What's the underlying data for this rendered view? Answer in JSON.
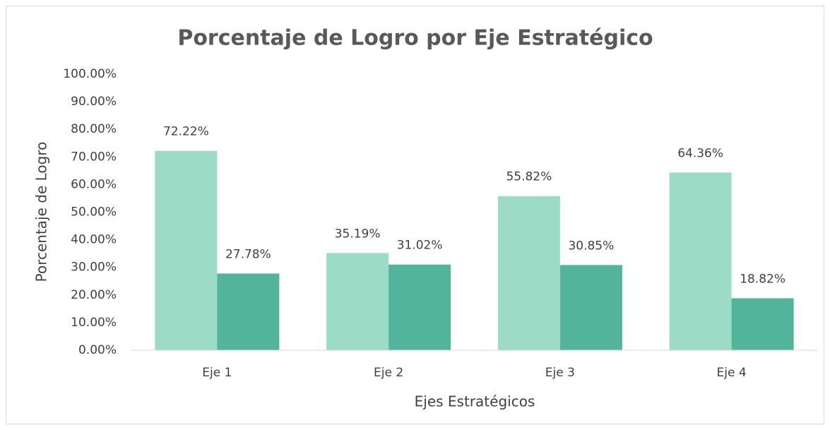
{
  "chart_data": {
    "type": "bar",
    "title": "Porcentaje de Logro por Eje Estratégico",
    "x_label": "Ejes Estratégicos",
    "y_label": "Porcentaje de Logro",
    "categories": [
      "Eje 1",
      "Eje 2",
      "Eje 3",
      "Eje 4"
    ],
    "series": [
      {
        "color": "#9cdbc6",
        "values": [
          72.22,
          35.19,
          55.82,
          64.36
        ],
        "value_labels": [
          "72.22%",
          "35.19%",
          "55.82%",
          "64.36%"
        ]
      },
      {
        "color": "#52b59b",
        "values": [
          27.78,
          31.02,
          30.85,
          18.82
        ],
        "value_labels": [
          "27.78%",
          "31.02%",
          "30.85%",
          "18.82%"
        ]
      }
    ],
    "ylim": [
      0,
      100
    ],
    "yticks": [
      {
        "value": 0,
        "label": "0.00%"
      },
      {
        "value": 10,
        "label": "10.00%"
      },
      {
        "value": 20,
        "label": "20.00%"
      },
      {
        "value": 30,
        "label": "30.00%"
      },
      {
        "value": 40,
        "label": "40.00%"
      },
      {
        "value": 50,
        "label": "50.00%"
      },
      {
        "value": 60,
        "label": "60.00%"
      },
      {
        "value": 70,
        "label": "70.00%"
      },
      {
        "value": 80,
        "label": "80.00%"
      },
      {
        "value": 90,
        "label": "90.00%"
      },
      {
        "value": 100,
        "label": "100.00%"
      }
    ],
    "grid": false
  }
}
